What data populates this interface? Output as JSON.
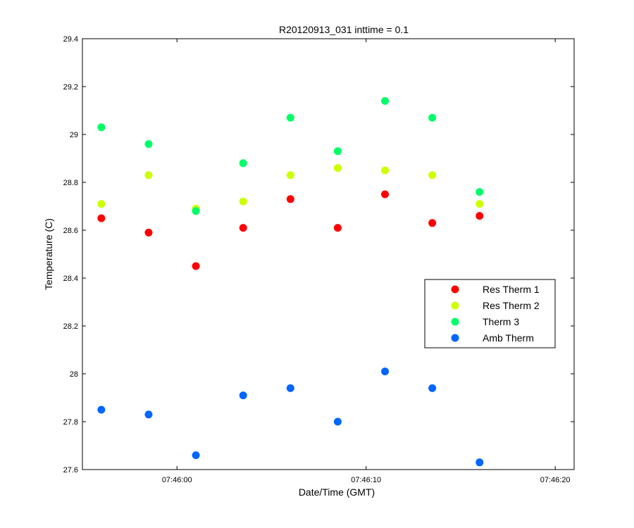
{
  "chart_data": {
    "type": "scatter",
    "title": "R20120913_031 inttime = 0.1",
    "xlabel": "Date/Time (GMT)",
    "ylabel": "Temperature (C)",
    "x_axis": {
      "type": "time",
      "range": [
        "07:45:55",
        "07:46:21"
      ],
      "ticks": [
        "07:46:00",
        "07:46:10",
        "07:46:20"
      ]
    },
    "y_axis": {
      "range": [
        27.6,
        29.4
      ],
      "ticks": [
        "27.6",
        "27.8",
        "28",
        "28.2",
        "28.4",
        "28.6",
        "28.8",
        "29",
        "29.2",
        "29.4"
      ]
    },
    "x": [
      "07:45:56",
      "07:45:58.5",
      "07:46:01",
      "07:46:03.5",
      "07:46:06",
      "07:46:08.5",
      "07:46:11",
      "07:46:13.5",
      "07:46:16"
    ],
    "series": [
      {
        "name": "Res Therm 1",
        "color": "#ff0000",
        "values": [
          28.65,
          28.59,
          28.45,
          28.61,
          28.73,
          28.61,
          28.75,
          28.63,
          28.66
        ]
      },
      {
        "name": "Res Therm 2",
        "color": "#ccff00",
        "values": [
          28.71,
          28.83,
          28.69,
          28.72,
          28.83,
          28.86,
          28.85,
          28.83,
          28.71
        ]
      },
      {
        "name": "Therm 3",
        "color": "#00ff66",
        "values": [
          29.03,
          28.96,
          28.68,
          28.88,
          29.07,
          28.93,
          29.14,
          29.07,
          28.76
        ]
      },
      {
        "name": "Amb Therm",
        "color": "#0066ff",
        "values": [
          27.85,
          27.83,
          27.66,
          27.91,
          27.94,
          27.8,
          28.01,
          27.94,
          27.63
        ]
      }
    ],
    "grid": false,
    "legend_position": "right"
  }
}
